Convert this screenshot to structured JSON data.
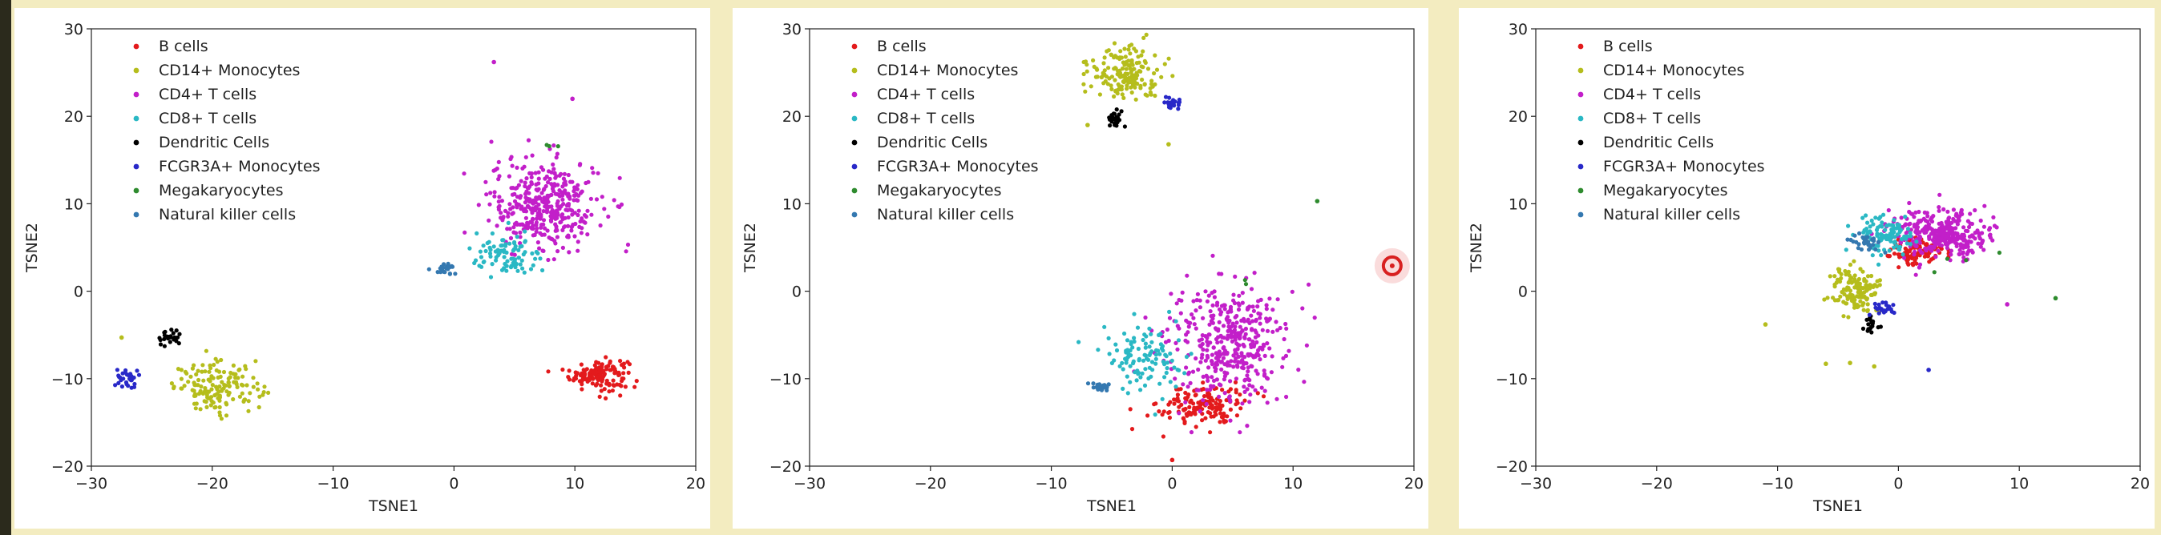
{
  "chart_data": [
    {
      "type": "scatter",
      "xlabel": "TSNE1",
      "ylabel": "TSNE2",
      "xlim": [
        -30,
        20
      ],
      "ylim": [
        -20,
        30
      ],
      "xticks": [
        "−30",
        "−20",
        "−10",
        "0",
        "10",
        "20"
      ],
      "yticks": [
        "−20",
        "−10",
        "0",
        "10",
        "20",
        "30"
      ],
      "legend_position": "top-left",
      "series": [
        {
          "name": "B cells",
          "color": "#e31a1c",
          "clusters": [
            {
              "cx": 12,
              "cy": -9.5,
              "sx": 1.2,
              "sy": 0.9,
              "n": 140
            }
          ]
        },
        {
          "name": "CD14+ Monocytes",
          "color": "#b5bd1c",
          "clusters": [
            {
              "cx": -19.5,
              "cy": -11,
              "sx": 1.8,
              "sy": 1.4,
              "n": 150
            }
          ]
        },
        {
          "name": "CD4+ T cells",
          "color": "#c21fc9",
          "clusters": [
            {
              "cx": 7.5,
              "cy": 10,
              "sx": 2.3,
              "sy": 2.6,
              "n": 380
            }
          ]
        },
        {
          "name": "CD8+ T cells",
          "color": "#2ab8c4",
          "clusters": [
            {
              "cx": 4.5,
              "cy": 4,
              "sx": 1.5,
              "sy": 1.2,
              "n": 90
            }
          ]
        },
        {
          "name": "Dendritic Cells",
          "color": "#000000",
          "clusters": [
            {
              "cx": -23.5,
              "cy": -5.5,
              "sx": 0.5,
              "sy": 0.6,
              "n": 25
            }
          ]
        },
        {
          "name": "FCGR3A+ Monocytes",
          "color": "#2828c8",
          "clusters": [
            {
              "cx": -27,
              "cy": -10,
              "sx": 0.5,
              "sy": 0.6,
              "n": 30
            }
          ]
        },
        {
          "name": "Megakaryocytes",
          "color": "#2e8b2e",
          "clusters": [
            {
              "cx": 8,
              "cy": 16.5,
              "sx": 0.4,
              "sy": 0.4,
              "n": 3
            }
          ]
        },
        {
          "name": "Natural killer cells",
          "color": "#3478b0",
          "clusters": [
            {
              "cx": -0.8,
              "cy": 2.6,
              "sx": 0.4,
              "sy": 0.3,
              "n": 25
            }
          ]
        }
      ],
      "outliers": [
        {
          "x": 3.3,
          "y": 26.2,
          "color": "#c21fc9"
        },
        {
          "x": 9.8,
          "y": 22.0,
          "color": "#c21fc9"
        },
        {
          "x": -27.5,
          "y": -5.3,
          "color": "#b5bd1c"
        }
      ]
    },
    {
      "type": "scatter",
      "xlabel": "TSNE1",
      "ylabel": "TSNE2",
      "xlim": [
        -30,
        20
      ],
      "ylim": [
        -20,
        30
      ],
      "xticks": [
        "−30",
        "−20",
        "−10",
        "0",
        "10",
        "20"
      ],
      "yticks": [
        "−20",
        "−10",
        "0",
        "10",
        "20",
        "30"
      ],
      "legend_position": "top-left",
      "series": [
        {
          "name": "B cells",
          "color": "#e31a1c",
          "clusters": [
            {
              "cx": 2.5,
              "cy": -13,
              "sx": 1.8,
              "sy": 1.2,
              "n": 150
            }
          ]
        },
        {
          "name": "CD14+ Monocytes",
          "color": "#b5bd1c",
          "clusters": [
            {
              "cx": -4,
              "cy": 25,
              "sx": 1.5,
              "sy": 1.6,
              "n": 170
            }
          ]
        },
        {
          "name": "CD4+ T cells",
          "color": "#c21fc9",
          "clusters": [
            {
              "cx": 4.5,
              "cy": -6,
              "sx": 2.5,
              "sy": 3.2,
              "n": 400
            }
          ]
        },
        {
          "name": "CD8+ T cells",
          "color": "#2ab8c4",
          "clusters": [
            {
              "cx": -2.5,
              "cy": -7.5,
              "sx": 1.6,
              "sy": 1.8,
              "n": 110
            }
          ]
        },
        {
          "name": "Dendritic Cells",
          "color": "#000000",
          "clusters": [
            {
              "cx": -4.5,
              "cy": 19.5,
              "sx": 0.4,
              "sy": 0.6,
              "n": 25
            }
          ]
        },
        {
          "name": "FCGR3A+ Monocytes",
          "color": "#2828c8",
          "clusters": [
            {
              "cx": 0,
              "cy": 21.5,
              "sx": 0.4,
              "sy": 0.4,
              "n": 25
            }
          ]
        },
        {
          "name": "Megakaryocytes",
          "color": "#2e8b2e",
          "clusters": [
            {
              "cx": 6,
              "cy": 1,
              "sx": 0.3,
              "sy": 0.3,
              "n": 2
            }
          ]
        },
        {
          "name": "Natural killer cells",
          "color": "#3478b0",
          "clusters": [
            {
              "cx": -6,
              "cy": -11,
              "sx": 0.4,
              "sy": 0.3,
              "n": 20
            }
          ]
        }
      ],
      "outliers": [
        {
          "x": 12.0,
          "y": 10.3,
          "color": "#2e8b2e"
        },
        {
          "x": 0.0,
          "y": -19.3,
          "color": "#e31a1c"
        },
        {
          "x": -7.0,
          "y": 19.0,
          "color": "#b5bd1c"
        },
        {
          "x": -0.3,
          "y": 16.8,
          "color": "#b5bd1c"
        }
      ],
      "highlight": {
        "x": 18.2,
        "y": 2.9
      }
    },
    {
      "type": "scatter",
      "xlabel": "TSNE1",
      "ylabel": "TSNE2",
      "xlim": [
        -30,
        20
      ],
      "ylim": [
        -20,
        30
      ],
      "xticks": [
        "−30",
        "−20",
        "−10",
        "0",
        "10",
        "20"
      ],
      "yticks": [
        "−20",
        "−10",
        "0",
        "10",
        "20",
        "30"
      ],
      "legend_position": "top-left",
      "series": [
        {
          "name": "B cells",
          "color": "#e31a1c",
          "clusters": [
            {
              "cx": 1.5,
              "cy": 4.5,
              "sx": 1.2,
              "sy": 0.8,
              "n": 110
            }
          ]
        },
        {
          "name": "CD14+ Monocytes",
          "color": "#b5bd1c",
          "clusters": [
            {
              "cx": -3.5,
              "cy": 0,
              "sx": 1.0,
              "sy": 1.3,
              "n": 130
            }
          ]
        },
        {
          "name": "CD4+ T cells",
          "color": "#c21fc9",
          "clusters": [
            {
              "cx": 3.5,
              "cy": 6.5,
              "sx": 2.0,
              "sy": 1.4,
              "n": 330
            }
          ]
        },
        {
          "name": "CD8+ T cells",
          "color": "#2ab8c4",
          "clusters": [
            {
              "cx": -1.5,
              "cy": 6.5,
              "sx": 1.2,
              "sy": 1.0,
              "n": 110
            }
          ]
        },
        {
          "name": "Dendritic Cells",
          "color": "#000000",
          "clusters": [
            {
              "cx": -2.3,
              "cy": -3.8,
              "sx": 0.3,
              "sy": 0.4,
              "n": 20
            }
          ]
        },
        {
          "name": "FCGR3A+ Monocytes",
          "color": "#2828c8",
          "clusters": [
            {
              "cx": -1,
              "cy": -2,
              "sx": 0.6,
              "sy": 0.4,
              "n": 25
            }
          ]
        },
        {
          "name": "Megakaryocytes",
          "color": "#2e8b2e",
          "clusters": [
            {
              "cx": 5,
              "cy": 3,
              "sx": 1.5,
              "sy": 1.0,
              "n": 4
            }
          ]
        },
        {
          "name": "Natural killer cells",
          "color": "#3478b0",
          "clusters": [
            {
              "cx": -2.5,
              "cy": 5.5,
              "sx": 0.7,
              "sy": 0.7,
              "n": 30
            }
          ]
        }
      ],
      "outliers": [
        {
          "x": -11.0,
          "y": -3.8,
          "color": "#b5bd1c"
        },
        {
          "x": -6.0,
          "y": -8.3,
          "color": "#b5bd1c"
        },
        {
          "x": -4.0,
          "y": -8.2,
          "color": "#b5bd1c"
        },
        {
          "x": -2.0,
          "y": -8.6,
          "color": "#b5bd1c"
        },
        {
          "x": 2.5,
          "y": -9.0,
          "color": "#2828c8"
        },
        {
          "x": 13.0,
          "y": -0.8,
          "color": "#2e8b2e"
        },
        {
          "x": 9.0,
          "y": -1.5,
          "color": "#c21fc9"
        }
      ]
    }
  ]
}
